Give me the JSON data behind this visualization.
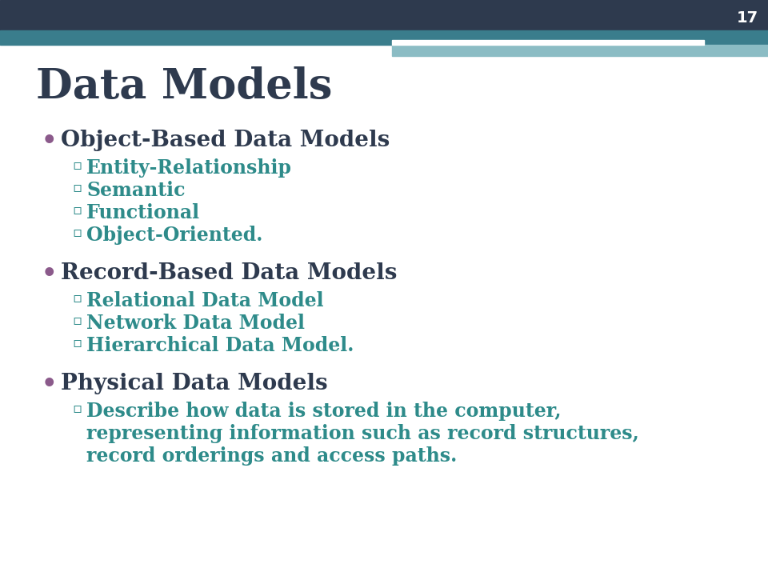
{
  "title": "Data Models",
  "slide_number": "17",
  "title_color": "#2E3A4E",
  "title_fontsize": 38,
  "background_color": "#FFFFFF",
  "header_bar_color": "#2E3A4E",
  "header_bar2_color": "#3A7D8C",
  "header_bar3_color": "#8BBCC4",
  "white_bar_color": "#FFFFFF",
  "bullet_color": "#8B5A8B",
  "sub_color": "#2E8B8A",
  "bullet_fontsize": 20,
  "sub_fontsize": 17,
  "content": [
    {
      "type": "bullet",
      "text": "Object-Based Data Models",
      "subs": [
        "Entity-Relationship",
        "Semantic",
        "Functional",
        "Object-Oriented."
      ]
    },
    {
      "type": "bullet",
      "text": "Record-Based Data Models",
      "subs": [
        "Relational Data Model",
        "Network Data Model",
        "Hierarchical Data Model."
      ]
    },
    {
      "type": "bullet",
      "text": "Physical Data Models",
      "subs": [
        "Describe how data is stored in the computer,\nrepresenting information such as record structures,\nrecord orderings and access paths."
      ]
    }
  ]
}
